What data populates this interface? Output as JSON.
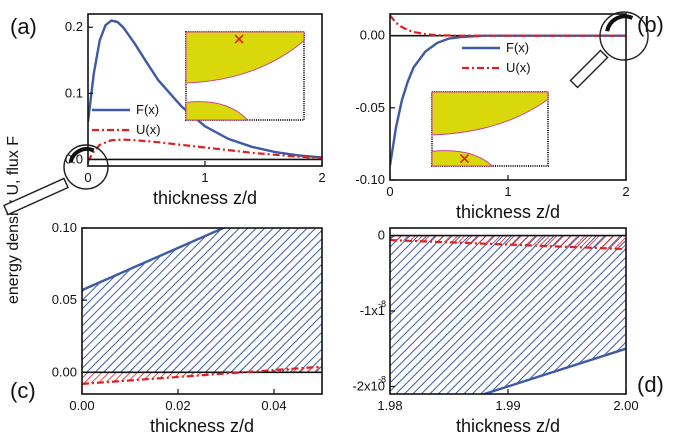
{
  "shared_ylabel": "energy density U, flux F",
  "colors": {
    "F": "#3d5aa5",
    "U": "#e02020",
    "inset_fill": "#d8d80a",
    "inset_line": "#cc4499"
  },
  "icons": [
    "magnifier-icon",
    "magnifier-icon"
  ],
  "chart_data": [
    {
      "panel": "(a)",
      "type": "line",
      "xlabel": "thickness z/d",
      "ylabel": "energy density U, flux F",
      "xlim": [
        0,
        2
      ],
      "ylim": [
        -0.01,
        0.22
      ],
      "xticks": [
        "0",
        "1",
        "2"
      ],
      "yticks": [
        "0.0",
        "0.1",
        "0.2"
      ],
      "legend": "middle-left",
      "series": [
        {
          "name": "F(x)",
          "style": "solid",
          "x": [
            0,
            0.05,
            0.1,
            0.15,
            0.2,
            0.25,
            0.3,
            0.4,
            0.5,
            0.6,
            0.8,
            1.0,
            1.2,
            1.4,
            1.6,
            1.8,
            2.0
          ],
          "y": [
            0.057,
            0.13,
            0.18,
            0.203,
            0.21,
            0.208,
            0.2,
            0.175,
            0.147,
            0.12,
            0.08,
            0.05,
            0.031,
            0.019,
            0.011,
            0.006,
            0.003
          ]
        },
        {
          "name": "U(x)",
          "style": "dash-dot",
          "x": [
            0,
            0.05,
            0.1,
            0.2,
            0.3,
            0.4,
            0.6,
            0.8,
            1.0,
            1.2,
            1.4,
            1.6,
            1.8,
            2.0
          ],
          "y": [
            -0.003,
            0.012,
            0.022,
            0.029,
            0.03,
            0.029,
            0.026,
            0.022,
            0.018,
            0.014,
            0.01,
            0.007,
            0.004,
            0.002
          ]
        }
      ]
    },
    {
      "panel": "(b)",
      "type": "line",
      "xlabel": "thickness z/d",
      "ylabel": "",
      "xlim": [
        0,
        2
      ],
      "ylim": [
        -0.1,
        0.015
      ],
      "xticks": [
        "0",
        "1",
        "2"
      ],
      "yticks": [
        "0.00",
        "-0.05",
        "-0.10"
      ],
      "legend": "top-center",
      "series": [
        {
          "name": "F(x)",
          "style": "solid",
          "x": [
            0,
            0.05,
            0.1,
            0.15,
            0.2,
            0.3,
            0.4,
            0.5,
            0.6,
            0.8,
            1.0,
            1.5,
            2.0
          ],
          "y": [
            -0.09,
            -0.064,
            -0.045,
            -0.032,
            -0.022,
            -0.011,
            -0.005,
            -0.002,
            -0.001,
            0,
            0,
            0,
            0
          ]
        },
        {
          "name": "U(x)",
          "style": "dash-dot",
          "x": [
            0,
            0.05,
            0.1,
            0.15,
            0.2,
            0.3,
            0.4,
            0.6,
            0.8,
            1.0,
            1.5,
            2.0
          ],
          "y": [
            0.014,
            0.009,
            0.006,
            0.004,
            0.0025,
            0.001,
            0.0003,
            0,
            0,
            0,
            0,
            0
          ]
        }
      ]
    },
    {
      "panel": "(c)",
      "type": "area",
      "xlabel": "thickness z/d",
      "ylabel": "",
      "xlim": [
        0,
        0.05
      ],
      "ylim": [
        -0.015,
        0.1
      ],
      "xticks": [
        "0.00",
        "0.02",
        "0.04"
      ],
      "yticks": [
        "0.10",
        "0.05",
        "0.00"
      ],
      "series": [
        {
          "name": "F(x)",
          "style": "solid",
          "x": [
            0,
            0.05
          ],
          "y": [
            0.057,
            0.13
          ]
        },
        {
          "name": "U(x)",
          "style": "dash-dot",
          "x": [
            0,
            0.05
          ],
          "y": [
            -0.008,
            0.004
          ]
        }
      ]
    },
    {
      "panel": "(d)",
      "type": "area",
      "xlabel": "thickness z/d",
      "ylabel": "",
      "xlim": [
        1.98,
        2.0
      ],
      "ylim": [
        -2.1e-08,
        1e-09
      ],
      "xticks": [
        "1.98",
        "1.99",
        "2.00"
      ],
      "yticks": [
        "0",
        "-1x1",
        "-2x10"
      ],
      "ytick_exponent": "-8",
      "series": [
        {
          "name": "F(x)",
          "style": "solid",
          "x": [
            1.98,
            2.0
          ],
          "y": [
            -2.5e-08,
            -1.5e-08
          ]
        },
        {
          "name": "U(x)",
          "style": "dash-dot",
          "x": [
            1.98,
            2.0
          ],
          "y": [
            -6e-10,
            -1.8e-09
          ]
        }
      ]
    }
  ]
}
